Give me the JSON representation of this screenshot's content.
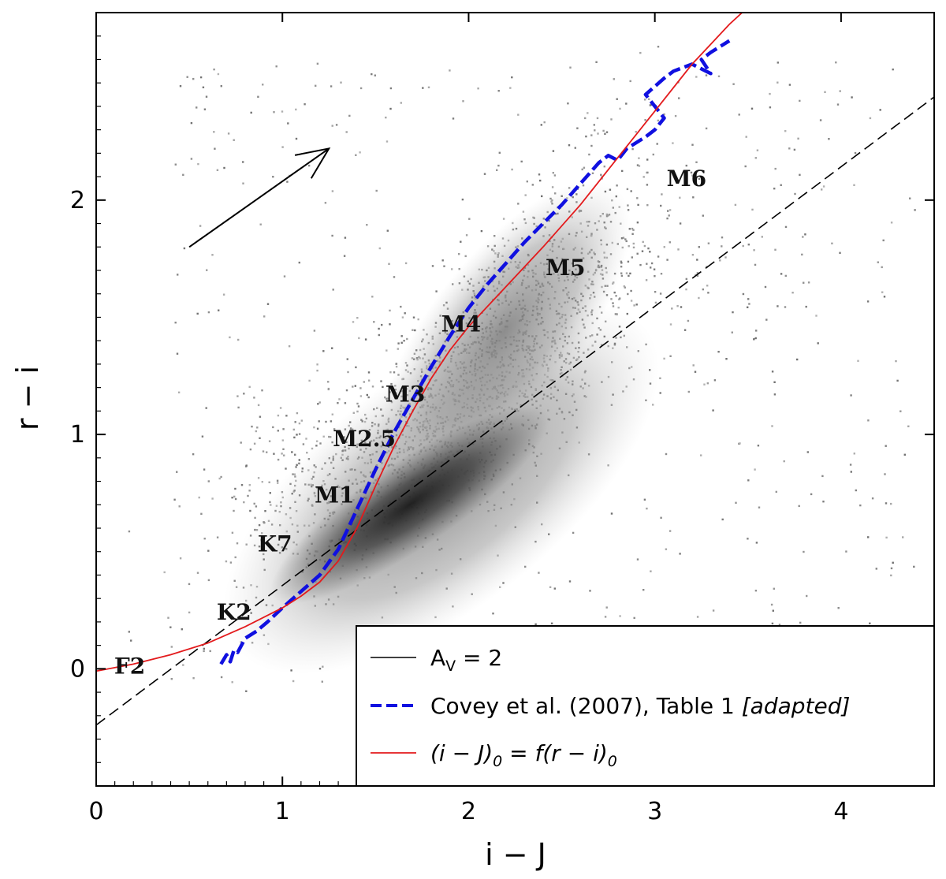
{
  "chart_data": {
    "type": "scatter",
    "xlabel": "i − J",
    "ylabel": "r − i",
    "xlim": [
      0,
      4.5
    ],
    "ylim": [
      -0.5,
      2.8
    ],
    "xticks": [
      {
        "value": 0,
        "label": "0"
      },
      {
        "value": 1,
        "label": "1"
      },
      {
        "value": 2,
        "label": "2"
      },
      {
        "value": 3,
        "label": "3"
      },
      {
        "value": 4,
        "label": "4"
      }
    ],
    "yticks": [
      {
        "value": 0,
        "label": "0"
      },
      {
        "value": 1,
        "label": "1"
      },
      {
        "value": 2,
        "label": "2"
      }
    ],
    "density_cloud": {
      "description_axis_center": {
        "x": 1.9,
        "y": 0.8
      },
      "color": "#6e6e6e"
    },
    "reddening_line": {
      "name": "A_V = 2",
      "style": "dashed",
      "color": "#000000",
      "x": [
        0,
        4.5
      ],
      "y": [
        -0.24,
        2.44
      ]
    },
    "covey_track": {
      "name": "Covey et al. (2007), Table 1 [adapted]",
      "style": "dashed",
      "color": "#1010e0",
      "x": [
        0.67,
        0.7,
        0.72,
        0.74,
        0.76,
        0.8,
        0.86,
        0.92,
        1.0,
        1.1,
        1.2,
        1.3,
        1.4,
        1.5,
        1.6,
        1.7,
        1.8,
        1.9,
        2.0,
        2.1,
        2.2,
        2.3,
        2.4,
        2.5,
        2.6,
        2.7,
        2.75,
        2.8,
        2.85,
        2.95,
        3.0,
        3.05,
        3.0,
        2.95,
        3.05,
        3.1,
        3.2,
        3.3,
        3.25,
        3.3,
        3.4
      ],
      "y": [
        0.02,
        0.06,
        0.03,
        0.08,
        0.07,
        0.13,
        0.16,
        0.2,
        0.26,
        0.33,
        0.4,
        0.51,
        0.68,
        0.85,
        1.01,
        1.15,
        1.29,
        1.42,
        1.54,
        1.64,
        1.73,
        1.82,
        1.9,
        1.98,
        2.07,
        2.16,
        2.19,
        2.17,
        2.22,
        2.27,
        2.3,
        2.35,
        2.4,
        2.45,
        2.52,
        2.55,
        2.58,
        2.54,
        2.6,
        2.63,
        2.68
      ]
    },
    "fit_curve": {
      "name": "(i − J)₀ = f(r − i)₀",
      "style": "solid",
      "color": "#e31a1c",
      "x": [
        0,
        0.2,
        0.4,
        0.6,
        0.8,
        1.0,
        1.1,
        1.2,
        1.3,
        1.4,
        1.5,
        1.6,
        1.7,
        1.8,
        1.9,
        2.0,
        2.2,
        2.4,
        2.6,
        2.8,
        3.0,
        3.2,
        3.4,
        3.55
      ],
      "y": [
        -0.01,
        0.02,
        0.06,
        0.11,
        0.18,
        0.26,
        0.31,
        0.37,
        0.46,
        0.6,
        0.78,
        0.95,
        1.1,
        1.24,
        1.36,
        1.46,
        1.63,
        1.8,
        1.98,
        2.18,
        2.38,
        2.58,
        2.75,
        2.86
      ]
    },
    "reddening_arrow": {
      "from": {
        "x": 0.5,
        "y": 1.8
      },
      "to": {
        "x": 1.25,
        "y": 2.22
      }
    },
    "spectral_types": [
      {
        "label": "F2",
        "x": 0.18,
        "y": -0.02
      },
      {
        "label": "K2",
        "x": 0.74,
        "y": 0.21
      },
      {
        "label": "K7",
        "x": 0.96,
        "y": 0.5
      },
      {
        "label": "M1",
        "x": 1.28,
        "y": 0.71
      },
      {
        "label": "M2.5",
        "x": 1.44,
        "y": 0.95
      },
      {
        "label": "M3",
        "x": 1.66,
        "y": 1.14
      },
      {
        "label": "M4",
        "x": 1.96,
        "y": 1.44
      },
      {
        "label": "M5",
        "x": 2.52,
        "y": 1.68
      },
      {
        "label": "M6",
        "x": 3.17,
        "y": 2.06
      }
    ],
    "legend": {
      "placement": "bottom-right",
      "entries": [
        {
          "key": "reddening_line",
          "label_main": "A",
          "label_sub": "V",
          "label_tail": " = 2"
        },
        {
          "key": "covey_track",
          "label_main": "Covey et al. (2007), Table 1 ",
          "label_italic": "[adapted]"
        },
        {
          "key": "fit_curve",
          "label_main": "(i − J)",
          "label_sub": "0",
          "label_tail": " = f(r − i)",
          "label_sub2": "0",
          "italic": true
        }
      ]
    }
  }
}
